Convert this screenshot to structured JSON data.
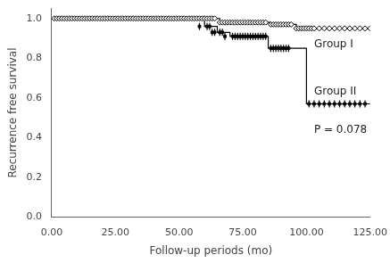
{
  "chart_data": {
    "type": "step",
    "xlabel": "Follow-up periods (mo)",
    "ylabel": "Recurrence free survival",
    "xlim": [
      0,
      125
    ],
    "ylim": [
      0.0,
      1.05
    ],
    "xticks": [
      {
        "value": 0,
        "label": "0.00"
      },
      {
        "value": 25,
        "label": "25.00"
      },
      {
        "value": 50,
        "label": "50.00"
      },
      {
        "value": 75,
        "label": "75.00"
      },
      {
        "value": 100,
        "label": "100.00"
      },
      {
        "value": 125,
        "label": "125.00"
      }
    ],
    "yticks": [
      {
        "value": 0,
        "label": "0.0"
      },
      0.2,
      0.4,
      0.6,
      0.8,
      {
        "value": 1,
        "label": "1.0"
      }
    ],
    "grid": false,
    "series": [
      {
        "type": "step",
        "color": "#000000",
        "x": [
          0,
          65,
          66,
          85,
          86,
          95,
          96,
          125
        ],
        "values": [
          1.0,
          1.0,
          0.98,
          0.98,
          0.97,
          0.97,
          0.95,
          0.95
        ]
      },
      {
        "type": "scatter",
        "marker": "open_diamond",
        "color": "#000000",
        "x": [
          1,
          2,
          3,
          4,
          5,
          6,
          7,
          8,
          9,
          10,
          11,
          12,
          13,
          14,
          15,
          16,
          17,
          18,
          19,
          20,
          21,
          22,
          23,
          24,
          25,
          26,
          27,
          28,
          29,
          30,
          31,
          32,
          33,
          34,
          35,
          36,
          37,
          38,
          39,
          40,
          41,
          42,
          43,
          44,
          45,
          46,
          47,
          48,
          49,
          50,
          51,
          52,
          53,
          54,
          55,
          56,
          57,
          58,
          59,
          60,
          61,
          62,
          63,
          64,
          66,
          67,
          68,
          69,
          70,
          71,
          72,
          73,
          74,
          75,
          76,
          77,
          78,
          79,
          80,
          81,
          82,
          83,
          84,
          86,
          87,
          88,
          89,
          90,
          91,
          92,
          93,
          94,
          96,
          97,
          98,
          99,
          100,
          101,
          102,
          103,
          105,
          107,
          109,
          111,
          113,
          115,
          117,
          119,
          121,
          123,
          125
        ],
        "values": [
          1.0,
          1.0,
          1.0,
          1.0,
          1.0,
          1.0,
          1.0,
          1.0,
          1.0,
          1.0,
          1.0,
          1.0,
          1.0,
          1.0,
          1.0,
          1.0,
          1.0,
          1.0,
          1.0,
          1.0,
          1.0,
          1.0,
          1.0,
          1.0,
          1.0,
          1.0,
          1.0,
          1.0,
          1.0,
          1.0,
          1.0,
          1.0,
          1.0,
          1.0,
          1.0,
          1.0,
          1.0,
          1.0,
          1.0,
          1.0,
          1.0,
          1.0,
          1.0,
          1.0,
          1.0,
          1.0,
          1.0,
          1.0,
          1.0,
          1.0,
          1.0,
          1.0,
          1.0,
          1.0,
          1.0,
          1.0,
          1.0,
          1.0,
          1.0,
          1.0,
          1.0,
          1.0,
          1.0,
          1.0,
          0.98,
          0.98,
          0.98,
          0.98,
          0.98,
          0.98,
          0.98,
          0.98,
          0.98,
          0.98,
          0.98,
          0.98,
          0.98,
          0.98,
          0.98,
          0.98,
          0.98,
          0.98,
          0.98,
          0.97,
          0.97,
          0.97,
          0.97,
          0.97,
          0.97,
          0.97,
          0.97,
          0.97,
          0.95,
          0.95,
          0.95,
          0.95,
          0.95,
          0.95,
          0.95,
          0.95,
          0.95,
          0.95,
          0.95,
          0.95,
          0.95,
          0.95,
          0.95,
          0.95,
          0.95,
          0.95,
          0.95
        ]
      },
      {
        "type": "step",
        "color": "#000000",
        "x": [
          0,
          57,
          60,
          65,
          70,
          75,
          80,
          85,
          90,
          95,
          100,
          100,
          125
        ],
        "values": [
          1.0,
          1.0,
          0.96,
          0.93,
          0.91,
          0.91,
          0.91,
          0.85,
          0.85,
          0.85,
          0.85,
          0.57,
          0.57
        ]
      },
      {
        "type": "scatter",
        "marker": "square",
        "color": "#000000",
        "x": [
          58,
          61,
          62,
          63,
          64,
          66,
          67,
          68,
          71,
          72,
          73,
          74,
          75,
          76,
          77,
          78,
          79,
          80,
          81,
          82,
          83,
          84,
          86,
          87,
          88,
          89,
          90,
          91,
          92,
          93,
          101,
          103,
          105,
          107,
          109,
          111,
          113,
          115,
          117,
          119,
          121,
          123
        ],
        "values": [
          0.96,
          0.96,
          0.96,
          0.93,
          0.93,
          0.93,
          0.93,
          0.91,
          0.91,
          0.91,
          0.91,
          0.91,
          0.91,
          0.91,
          0.91,
          0.91,
          0.91,
          0.91,
          0.91,
          0.91,
          0.91,
          0.91,
          0.85,
          0.85,
          0.85,
          0.85,
          0.85,
          0.85,
          0.85,
          0.85,
          0.57,
          0.57,
          0.57,
          0.57,
          0.57,
          0.57,
          0.57,
          0.57,
          0.57,
          0.57,
          0.57,
          0.57
        ]
      },
      {
        "type": "scatter",
        "marker": "vline",
        "color": "#000000",
        "x": [
          58,
          61,
          62,
          63,
          64,
          66,
          67,
          68,
          71,
          72,
          73,
          74,
          75,
          76,
          77,
          78,
          79,
          80,
          81,
          82,
          83,
          84,
          86,
          87,
          88,
          89,
          90,
          91,
          92,
          93,
          101,
          103,
          105,
          107,
          109,
          111,
          113,
          115,
          117,
          119,
          121,
          123
        ],
        "values": [
          0.96,
          0.96,
          0.96,
          0.93,
          0.93,
          0.93,
          0.93,
          0.91,
          0.91,
          0.91,
          0.91,
          0.91,
          0.91,
          0.91,
          0.91,
          0.91,
          0.91,
          0.91,
          0.91,
          0.91,
          0.91,
          0.91,
          0.85,
          0.85,
          0.85,
          0.85,
          0.85,
          0.85,
          0.85,
          0.85,
          0.57,
          0.57,
          0.57,
          0.57,
          0.57,
          0.57,
          0.57,
          0.57,
          0.57,
          0.57,
          0.57,
          0.57
        ]
      }
    ],
    "annotations": [
      {
        "text": "Group I",
        "x": 103,
        "y": 0.87
      },
      {
        "text": "Group II",
        "x": 103,
        "y": 0.63
      },
      {
        "text": "P = 0.078",
        "x": 103,
        "y": 0.44
      }
    ]
  }
}
